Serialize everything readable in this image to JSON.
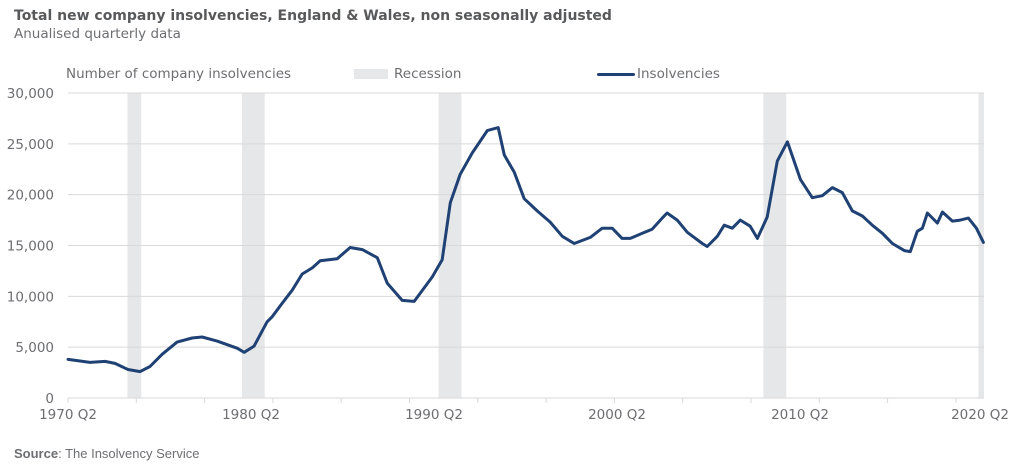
{
  "header": {
    "title": "Total new company insolvencies, England & Wales, non seasonally adjusted",
    "subtitle": "Anualised quarterly data"
  },
  "footer": {
    "source_label": "Source",
    "source_text": ": The Insolvency Service"
  },
  "colors": {
    "line": "#1f4174",
    "recession": "#e6e7e8",
    "grid": "#d9d9d9",
    "text": "#6d6e71"
  },
  "chart_data": {
    "type": "line",
    "title": "Total new company insolvencies, England & Wales, non seasonally adjusted",
    "subtitle": "Anualised quarterly data",
    "ylabel": "Number of company insolvencies",
    "xlabel": "",
    "ylim": [
      0,
      30000
    ],
    "xlim": [
      1970.25,
      2020.5
    ],
    "grid": true,
    "legend_placement": "top",
    "legend": [
      "Recession",
      "Insolvencies"
    ],
    "y_ticks": [
      0,
      5000,
      10000,
      15000,
      20000,
      25000,
      30000
    ],
    "y_tick_labels": [
      "0",
      "5,000",
      "10,000",
      "15,000",
      "20,000",
      "25,000",
      "30,000"
    ],
    "x_ticks": [
      1970.25,
      1980.25,
      1990.25,
      2000.25,
      2010.25,
      2020.25
    ],
    "x_tick_labels": [
      "1970 Q2",
      "1980 Q2",
      "1990 Q2",
      "2000 Q2",
      "2010 Q2",
      "2020 Q2"
    ],
    "recessions": [
      {
        "start": 1973.5,
        "end": 1974.25
      },
      {
        "start": 1979.75,
        "end": 1981.0
      },
      {
        "start": 1990.5,
        "end": 1991.75
      },
      {
        "start": 2008.25,
        "end": 2009.5
      },
      {
        "start": 2020.0,
        "end": 2020.5
      }
    ],
    "series": [
      {
        "name": "Insolvencies",
        "x": [
          1970.25,
          1971.45,
          1972.27,
          1972.82,
          1973.53,
          1974.19,
          1974.73,
          1975.39,
          1976.21,
          1977.03,
          1977.58,
          1978.4,
          1979.49,
          1979.88,
          1980.42,
          1981.13,
          1981.41,
          1981.95,
          1982.5,
          1983.05,
          1983.6,
          1984.03,
          1984.96,
          1985.67,
          1986.33,
          1987.15,
          1987.69,
          1988.51,
          1989.17,
          1990.15,
          1990.7,
          1991.14,
          1991.68,
          1992.34,
          1993.16,
          1993.76,
          1994.09,
          1994.64,
          1995.18,
          1995.89,
          1996.6,
          1997.26,
          1997.91,
          1998.79,
          1999.44,
          1999.99,
          2000.53,
          2000.97,
          2001.63,
          2002.17,
          2002.72,
          2002.99,
          2003.54,
          2004.09,
          2004.91,
          2005.18,
          2005.73,
          2006.11,
          2006.55,
          2006.99,
          2007.53,
          2007.92,
          2008.46,
          2009.01,
          2009.56,
          2010.27,
          2010.92,
          2011.47,
          2012.02,
          2012.56,
          2013.11,
          2013.66,
          2014.2,
          2014.75,
          2015.3,
          2015.95,
          2016.28,
          2016.66,
          2016.94,
          2017.21,
          2017.76,
          2018.03,
          2018.58,
          2019.01,
          2019.45,
          2019.89
        ],
        "values": [
          3800,
          3500,
          3600,
          3400,
          2800,
          2600,
          3100,
          4300,
          5500,
          5900,
          6000,
          5600,
          4900,
          4500,
          5100,
          7500,
          8000,
          9300,
          10600,
          12200,
          12800,
          13500,
          13700,
          14800,
          14600,
          13800,
          11300,
          9600,
          9500,
          11900,
          13600,
          19200,
          22000,
          24100,
          26300,
          26600,
          23900,
          22200,
          19600,
          18400,
          17300,
          15900,
          15200,
          15800,
          16700,
          16700,
          15700,
          15700,
          16200,
          16600,
          17700,
          18200,
          17500,
          16300,
          15200,
          14900,
          15900,
          17000,
          16700,
          17500,
          16900,
          15700,
          17800,
          23300,
          25200,
          21500,
          19700,
          19900,
          20700,
          20200,
          18400,
          17900,
          17000,
          16200,
          15200,
          14500,
          14400,
          16400,
          16700,
          18200,
          17200,
          18300,
          17400,
          17500,
          17700,
          16700
        ]
      }
    ],
    "last_point": {
      "x": 2020.27,
      "value": 15300
    }
  }
}
